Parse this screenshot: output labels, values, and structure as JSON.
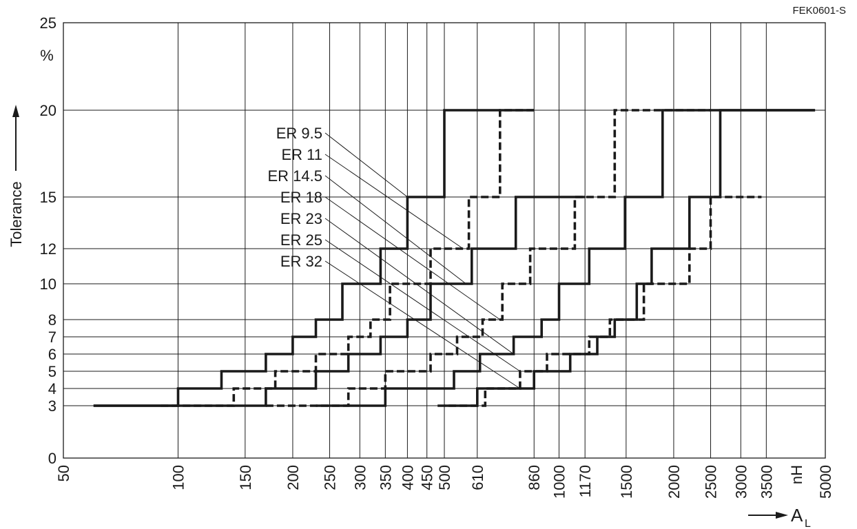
{
  "chart_data": {
    "type": "line",
    "figure_code": "FEK0601-S",
    "ylabel": "Tolerance",
    "y_unit": "%",
    "xlabel": "A",
    "xlabel_subscript": "L",
    "x_unit": "nH",
    "x_scale": "log",
    "xlim": [
      50,
      5000
    ],
    "ylim": [
      0,
      25
    ],
    "y_scale": "nonlinear",
    "grid": true,
    "x_ticks": [
      "50",
      "100",
      "150",
      "200",
      "250",
      "300",
      "350",
      "400",
      "450",
      "500",
      "610",
      "860",
      "1000",
      "1170",
      "1500",
      "2000",
      "2500",
      "3000",
      "3500",
      "5000"
    ],
    "y_ticks": [
      "0",
      "3",
      "4",
      "5",
      "6",
      "7",
      "8",
      "10",
      "12",
      "15",
      "20",
      "25"
    ],
    "series": [
      {
        "name": "ER 9.5",
        "style": "solid",
        "x": [
          60,
          100,
          100,
          130,
          130,
          170,
          170,
          200,
          200,
          230,
          230,
          270,
          270,
          340,
          340,
          400,
          400,
          500,
          500,
          860
        ],
        "y": [
          3,
          3,
          4,
          4,
          5,
          5,
          6,
          6,
          7,
          7,
          8,
          8,
          10,
          10,
          12,
          12,
          15,
          15,
          20,
          20
        ]
      },
      {
        "name": "ER 11",
        "style": "dashed",
        "x": [
          90,
          140,
          140,
          180,
          180,
          230,
          230,
          280,
          280,
          320,
          320,
          360,
          360,
          460,
          460,
          580,
          580,
          700,
          700,
          860
        ],
        "y": [
          3,
          3,
          4,
          4,
          5,
          5,
          6,
          6,
          7,
          7,
          8,
          8,
          10,
          10,
          12,
          12,
          15,
          15,
          20,
          20
        ]
      },
      {
        "name": "ER 14.5",
        "style": "solid",
        "x": [
          60,
          170,
          170,
          230,
          230,
          280,
          280,
          340,
          340,
          400,
          400,
          460,
          460,
          590,
          590,
          770,
          770,
          1170
        ],
        "y": [
          3,
          3,
          4,
          4,
          5,
          5,
          6,
          6,
          7,
          7,
          8,
          8,
          10,
          10,
          12,
          12,
          15,
          15
        ]
      },
      {
        "name": "ER 18",
        "style": "dashed",
        "x": [
          170,
          280,
          280,
          350,
          350,
          460,
          460,
          540,
          540,
          630,
          630,
          710,
          710,
          840,
          840,
          1100,
          1100,
          1400,
          1400,
          2500
        ],
        "y": [
          3,
          3,
          4,
          4,
          5,
          5,
          6,
          6,
          7,
          7,
          8,
          8,
          10,
          10,
          12,
          12,
          15,
          15,
          20,
          20
        ]
      },
      {
        "name": "ER 23",
        "style": "solid",
        "x": [
          230,
          350,
          350,
          530,
          530,
          620,
          620,
          760,
          760,
          900,
          900,
          1000,
          1000,
          1200,
          1200,
          1490,
          1490,
          1870,
          1870,
          4700
        ],
        "y": [
          3,
          3,
          4,
          4,
          5,
          5,
          6,
          6,
          7,
          7,
          8,
          8,
          10,
          10,
          12,
          12,
          15,
          15,
          20,
          20
        ]
      },
      {
        "name": "ER 25",
        "style": "dashed",
        "x": [
          480,
          640,
          640,
          790,
          790,
          930,
          930,
          1200,
          1200,
          1360,
          1360,
          1670,
          1670,
          2200,
          2200,
          2500,
          2500,
          3400
        ],
        "y": [
          3,
          3,
          4,
          4,
          5,
          5,
          6,
          6,
          7,
          7,
          8,
          8,
          10,
          10,
          12,
          12,
          15,
          15
        ]
      },
      {
        "name": "ER 32",
        "style": "solid",
        "x": [
          500,
          610,
          610,
          860,
          860,
          1070,
          1070,
          1260,
          1260,
          1400,
          1400,
          1600,
          1600,
          1750,
          1750,
          2200,
          2200,
          2650,
          2650,
          3250,
          3250,
          4700
        ],
        "y": [
          3,
          3,
          4,
          4,
          5,
          5,
          6,
          6,
          7,
          7,
          8,
          8,
          10,
          10,
          12,
          12,
          15,
          15,
          20,
          20,
          20,
          20
        ]
      }
    ]
  }
}
